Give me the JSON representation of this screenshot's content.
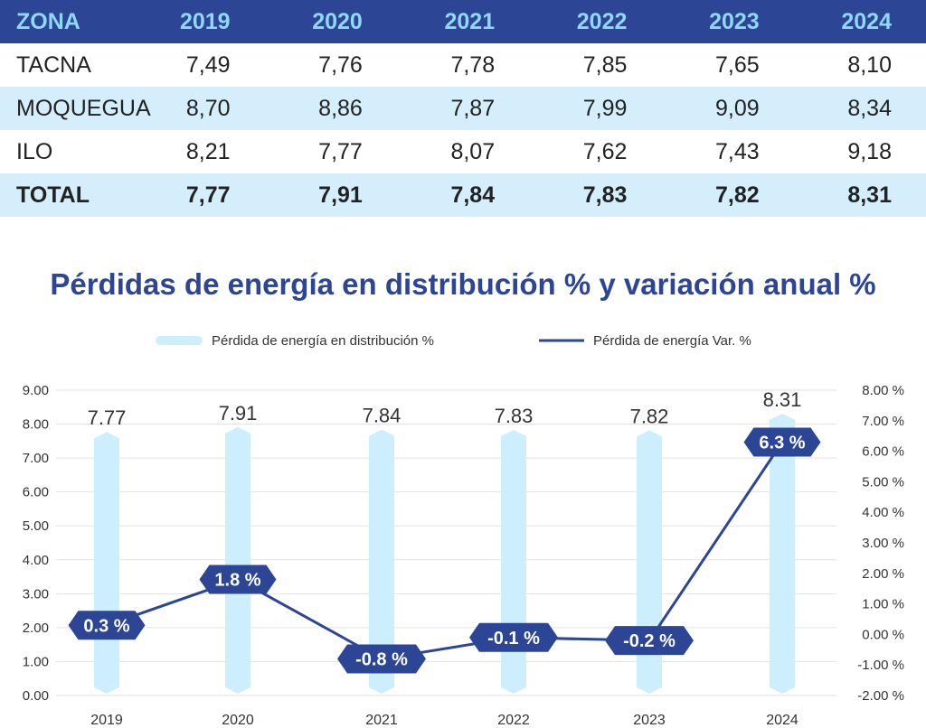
{
  "table": {
    "headers": [
      "ZONA",
      "2019",
      "2020",
      "2021",
      "2022",
      "2023",
      "2024"
    ],
    "rows": [
      {
        "zona": "TACNA",
        "values": [
          "7,49",
          "7,76",
          "7,78",
          "7,85",
          "7,65",
          "8,10"
        ]
      },
      {
        "zona": "MOQUEGUA",
        "values": [
          "8,70",
          "8,86",
          "7,87",
          "7,99",
          "9,09",
          "8,34"
        ]
      },
      {
        "zona": "ILO",
        "values": [
          "8,21",
          "7,77",
          "8,07",
          "7,62",
          "7,43",
          "9,18"
        ]
      },
      {
        "zona": "TOTAL",
        "values": [
          "7,77",
          "7,91",
          "7,84",
          "7,83",
          "7,82",
          "8,31"
        ]
      }
    ]
  },
  "chart_data": {
    "type": "bar",
    "title": "Pérdidas de energía en distribución % y variación anual %",
    "categories": [
      "2019",
      "2020",
      "2021",
      "2022",
      "2023",
      "2024"
    ],
    "series": [
      {
        "name": "Pérdida de energía en distribución %",
        "type": "bar",
        "axis": "left",
        "values": [
          7.77,
          7.91,
          7.84,
          7.83,
          7.82,
          8.31
        ],
        "labels": [
          "7.77",
          "7.91",
          "7.84",
          "7.83",
          "7.82",
          "8.31"
        ],
        "color": "#cdeefc"
      },
      {
        "name": "Pérdida de energía Var. %",
        "type": "line",
        "axis": "right",
        "values": [
          0.3,
          1.8,
          -0.8,
          -0.1,
          -0.2,
          6.3
        ],
        "labels": [
          "0.3 %",
          "1.8 %",
          "-0.8 %",
          "-0.1 %",
          "-0.2 %",
          "6.3 %"
        ],
        "color": "#2c4594"
      }
    ],
    "y_left": {
      "min": 0,
      "max": 9,
      "step": 1,
      "tick_labels": [
        "0.00",
        "1.00",
        "2.00",
        "3.00",
        "4.00",
        "5.00",
        "6.00",
        "7.00",
        "8.00",
        "9.00"
      ]
    },
    "y_right": {
      "min": -2,
      "max": 8,
      "step": 1,
      "tick_labels": [
        "-2.00 %",
        "-1.00 %",
        "0.00 %",
        "1.00 %",
        "2.00 %",
        "3.00 %",
        "4.00 %",
        "5.00 %",
        "6.00 %",
        "7.00 %",
        "8.00 %"
      ]
    },
    "grid": true,
    "legend": "top-center"
  }
}
